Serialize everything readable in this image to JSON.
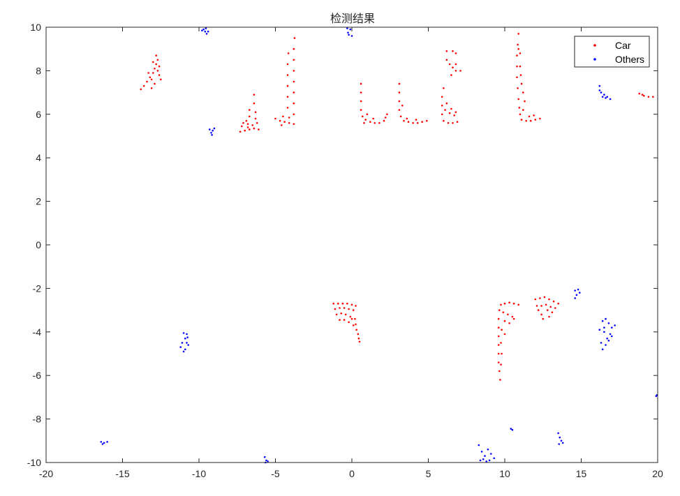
{
  "chart_data": {
    "type": "scatter",
    "title": "检测结果",
    "xlabel": "",
    "ylabel": "",
    "xlim": [
      -20,
      20
    ],
    "ylim": [
      -10,
      10
    ],
    "xticks": [
      -20,
      -15,
      -10,
      -5,
      0,
      5,
      10,
      15,
      20
    ],
    "yticks": [
      -10,
      -8,
      -6,
      -4,
      -2,
      0,
      2,
      4,
      6,
      8,
      10
    ],
    "grid": false,
    "legend_position": "top-right",
    "series": [
      {
        "name": "Car",
        "color": "#ff0000",
        "points": [
          [
            -13.8,
            7.15
          ],
          [
            -13.6,
            7.3
          ],
          [
            -13.4,
            7.5
          ],
          [
            -13.2,
            7.7
          ],
          [
            -13.0,
            7.9
          ],
          [
            -12.9,
            8.1
          ],
          [
            -12.8,
            8.3
          ],
          [
            -12.7,
            8.5
          ],
          [
            -12.8,
            8.7
          ],
          [
            -13.1,
            7.6
          ],
          [
            -12.6,
            7.8
          ],
          [
            -12.9,
            7.4
          ],
          [
            -13.3,
            7.9
          ],
          [
            -12.7,
            8.0
          ],
          [
            -13.0,
            8.4
          ],
          [
            -12.6,
            8.2
          ],
          [
            -13.1,
            7.2
          ],
          [
            -12.5,
            7.6
          ],
          [
            -7.3,
            5.2
          ],
          [
            -7.0,
            5.25
          ],
          [
            -6.7,
            5.3
          ],
          [
            -6.4,
            5.35
          ],
          [
            -6.1,
            5.3
          ],
          [
            -7.2,
            5.45
          ],
          [
            -6.8,
            5.55
          ],
          [
            -6.5,
            5.5
          ],
          [
            -6.3,
            5.8
          ],
          [
            -6.3,
            6.1
          ],
          [
            -6.4,
            6.5
          ],
          [
            -6.4,
            6.9
          ],
          [
            -6.7,
            5.9
          ],
          [
            -6.7,
            6.2
          ],
          [
            -6.8,
            5.4
          ],
          [
            -7.1,
            5.6
          ],
          [
            -6.2,
            5.6
          ],
          [
            -6.9,
            5.7
          ],
          [
            -5.0,
            5.8
          ],
          [
            -4.7,
            5.7
          ],
          [
            -4.4,
            5.65
          ],
          [
            -4.1,
            5.6
          ],
          [
            -3.8,
            5.55
          ],
          [
            -3.8,
            6.0
          ],
          [
            -3.8,
            6.5
          ],
          [
            -3.8,
            7.0
          ],
          [
            -3.8,
            7.5
          ],
          [
            -3.8,
            8.0
          ],
          [
            -3.8,
            8.5
          ],
          [
            -3.8,
            9.0
          ],
          [
            -3.75,
            9.5
          ],
          [
            -4.1,
            5.85
          ],
          [
            -4.5,
            5.9
          ],
          [
            -4.2,
            6.3
          ],
          [
            -4.2,
            6.8
          ],
          [
            -4.2,
            7.3
          ],
          [
            -4.2,
            7.8
          ],
          [
            -4.2,
            8.3
          ],
          [
            -4.15,
            8.8
          ],
          [
            -4.6,
            5.5
          ],
          [
            0.6,
            7.4
          ],
          [
            0.6,
            7.0
          ],
          [
            0.6,
            6.6
          ],
          [
            0.6,
            6.2
          ],
          [
            0.7,
            5.9
          ],
          [
            0.9,
            5.75
          ],
          [
            1.2,
            5.65
          ],
          [
            1.5,
            5.6
          ],
          [
            1.8,
            5.6
          ],
          [
            2.1,
            5.7
          ],
          [
            2.3,
            6.0
          ],
          [
            2.2,
            5.85
          ],
          [
            1.4,
            5.8
          ],
          [
            1.0,
            6.0
          ],
          [
            0.8,
            5.6
          ],
          [
            3.1,
            7.4
          ],
          [
            3.1,
            7.0
          ],
          [
            3.1,
            6.6
          ],
          [
            3.1,
            6.2
          ],
          [
            3.2,
            5.9
          ],
          [
            3.4,
            5.7
          ],
          [
            3.7,
            5.65
          ],
          [
            4.0,
            5.6
          ],
          [
            4.3,
            5.6
          ],
          [
            4.6,
            5.65
          ],
          [
            4.9,
            5.7
          ],
          [
            3.3,
            6.4
          ],
          [
            3.6,
            5.8
          ],
          [
            4.2,
            5.75
          ],
          [
            5.9,
            6.8
          ],
          [
            5.9,
            6.4
          ],
          [
            5.9,
            6.0
          ],
          [
            6.0,
            5.7
          ],
          [
            6.3,
            5.6
          ],
          [
            6.6,
            5.6
          ],
          [
            6.9,
            5.65
          ],
          [
            6.1,
            6.2
          ],
          [
            6.4,
            6.05
          ],
          [
            6.7,
            5.95
          ],
          [
            6.2,
            6.5
          ],
          [
            6.5,
            6.25
          ],
          [
            6.8,
            6.1
          ],
          [
            6.0,
            7.2
          ],
          [
            6.2,
            8.9
          ],
          [
            6.2,
            8.5
          ],
          [
            6.4,
            8.3
          ],
          [
            6.8,
            8.3
          ],
          [
            6.8,
            8.8
          ],
          [
            6.6,
            8.9
          ],
          [
            6.5,
            7.8
          ],
          [
            6.8,
            8.0
          ],
          [
            7.1,
            8.0
          ],
          [
            6.6,
            8.15
          ],
          [
            10.9,
            9.7
          ],
          [
            10.85,
            9.2
          ],
          [
            10.8,
            8.7
          ],
          [
            10.8,
            8.2
          ],
          [
            10.8,
            7.7
          ],
          [
            10.85,
            7.2
          ],
          [
            10.9,
            6.7
          ],
          [
            10.95,
            6.3
          ],
          [
            11.0,
            6.0
          ],
          [
            11.1,
            5.75
          ],
          [
            11.4,
            5.7
          ],
          [
            11.7,
            5.7
          ],
          [
            12.0,
            5.75
          ],
          [
            12.3,
            5.8
          ],
          [
            11.2,
            6.2
          ],
          [
            11.3,
            6.6
          ],
          [
            11.2,
            7.0
          ],
          [
            11.1,
            7.4
          ],
          [
            11.05,
            7.8
          ],
          [
            11.0,
            8.2
          ],
          [
            11.6,
            5.9
          ],
          [
            11.9,
            5.95
          ],
          [
            10.9,
            9.0
          ],
          [
            11.0,
            8.8
          ],
          [
            18.8,
            6.95
          ],
          [
            19.1,
            6.85
          ],
          [
            19.4,
            6.8
          ],
          [
            19.7,
            6.8
          ],
          [
            19.0,
            6.9
          ],
          [
            -1.2,
            -2.7
          ],
          [
            -0.9,
            -2.7
          ],
          [
            -0.6,
            -2.7
          ],
          [
            -0.3,
            -2.7
          ],
          [
            0.0,
            -2.75
          ],
          [
            0.25,
            -2.8
          ],
          [
            -1.1,
            -2.95
          ],
          [
            -0.8,
            -2.9
          ],
          [
            -0.5,
            -2.9
          ],
          [
            -0.2,
            -2.95
          ],
          [
            0.1,
            -3.0
          ],
          [
            -1.0,
            -3.2
          ],
          [
            -0.7,
            -3.15
          ],
          [
            -0.4,
            -3.2
          ],
          [
            -0.1,
            -3.3
          ],
          [
            0.2,
            -3.4
          ],
          [
            -0.8,
            -3.45
          ],
          [
            -0.5,
            -3.45
          ],
          [
            -0.2,
            -3.55
          ],
          [
            0.1,
            -3.7
          ],
          [
            0.3,
            -3.9
          ],
          [
            0.4,
            -4.1
          ],
          [
            0.45,
            -4.3
          ],
          [
            0.5,
            -4.45
          ],
          [
            0.25,
            -3.65
          ],
          [
            0.0,
            -3.4
          ],
          [
            9.7,
            -6.2
          ],
          [
            9.65,
            -5.8
          ],
          [
            9.6,
            -5.4
          ],
          [
            9.6,
            -5.0
          ],
          [
            9.6,
            -4.6
          ],
          [
            9.6,
            -4.2
          ],
          [
            9.6,
            -3.8
          ],
          [
            9.6,
            -3.4
          ],
          [
            9.65,
            -3.0
          ],
          [
            9.75,
            -2.75
          ],
          [
            10.0,
            -2.7
          ],
          [
            10.3,
            -2.65
          ],
          [
            10.6,
            -2.7
          ],
          [
            10.9,
            -2.75
          ],
          [
            9.9,
            -3.1
          ],
          [
            10.2,
            -3.2
          ],
          [
            10.5,
            -3.3
          ],
          [
            10.0,
            -3.5
          ],
          [
            10.3,
            -3.6
          ],
          [
            10.6,
            -3.4
          ],
          [
            9.8,
            -3.9
          ],
          [
            10.0,
            -4.1
          ],
          [
            9.75,
            -4.5
          ],
          [
            9.8,
            -5.0
          ],
          [
            9.75,
            -5.5
          ],
          [
            12.0,
            -2.5
          ],
          [
            12.3,
            -2.45
          ],
          [
            12.6,
            -2.4
          ],
          [
            12.9,
            -2.5
          ],
          [
            13.2,
            -2.6
          ],
          [
            13.5,
            -2.7
          ],
          [
            12.1,
            -2.8
          ],
          [
            12.4,
            -2.8
          ],
          [
            12.7,
            -2.75
          ],
          [
            13.0,
            -2.85
          ],
          [
            13.3,
            -2.9
          ],
          [
            12.2,
            -3.0
          ],
          [
            12.4,
            -3.2
          ],
          [
            12.5,
            -3.4
          ],
          [
            12.8,
            -3.0
          ],
          [
            12.9,
            -3.3
          ],
          [
            13.1,
            -3.1
          ]
        ]
      },
      {
        "name": "Others",
        "color": "#0000ff",
        "points": [
          [
            -9.8,
            9.85
          ],
          [
            -9.6,
            9.8
          ],
          [
            -9.5,
            9.7
          ],
          [
            -9.7,
            9.9
          ],
          [
            -9.55,
            9.95
          ],
          [
            -9.4,
            9.8
          ],
          [
            -0.3,
            9.95
          ],
          [
            -0.1,
            9.9
          ],
          [
            -0.2,
            9.65
          ],
          [
            0.0,
            9.6
          ],
          [
            -0.25,
            9.75
          ],
          [
            -9.3,
            5.3
          ],
          [
            -9.1,
            5.25
          ],
          [
            -9.2,
            5.15
          ],
          [
            -9.0,
            5.35
          ],
          [
            -9.15,
            5.05
          ],
          [
            16.2,
            7.3
          ],
          [
            16.3,
            7.0
          ],
          [
            16.4,
            6.8
          ],
          [
            16.6,
            6.75
          ],
          [
            16.9,
            6.7
          ],
          [
            16.2,
            7.1
          ],
          [
            16.5,
            6.9
          ],
          [
            16.7,
            6.8
          ],
          [
            14.6,
            -2.1
          ],
          [
            14.8,
            -2.05
          ],
          [
            14.7,
            -2.3
          ],
          [
            14.9,
            -2.2
          ],
          [
            14.6,
            -2.45
          ],
          [
            16.2,
            -3.9
          ],
          [
            16.4,
            -3.5
          ],
          [
            16.6,
            -3.4
          ],
          [
            16.8,
            -3.6
          ],
          [
            16.5,
            -4.0
          ],
          [
            16.9,
            -4.1
          ],
          [
            16.3,
            -4.5
          ],
          [
            16.7,
            -4.3
          ],
          [
            17.0,
            -3.8
          ],
          [
            16.6,
            -4.6
          ],
          [
            16.4,
            -4.8
          ],
          [
            17.2,
            -3.7
          ],
          [
            16.8,
            -4.4
          ],
          [
            16.5,
            -3.8
          ],
          [
            17.0,
            -4.2
          ],
          [
            -11.0,
            -4.05
          ],
          [
            -10.8,
            -4.1
          ],
          [
            -10.9,
            -4.3
          ],
          [
            -11.1,
            -4.5
          ],
          [
            -10.7,
            -4.6
          ],
          [
            -11.2,
            -4.7
          ],
          [
            -10.9,
            -4.8
          ],
          [
            -10.8,
            -4.5
          ],
          [
            -11.0,
            -4.9
          ],
          [
            -10.75,
            -4.25
          ],
          [
            -16.4,
            -9.05
          ],
          [
            -16.2,
            -9.1
          ],
          [
            -16.0,
            -9.05
          ],
          [
            -16.3,
            -9.15
          ],
          [
            -5.7,
            -9.75
          ],
          [
            -5.6,
            -9.9
          ],
          [
            -5.5,
            -9.95
          ],
          [
            -5.65,
            -10.0
          ],
          [
            8.3,
            -9.2
          ],
          [
            8.5,
            -9.5
          ],
          [
            8.7,
            -9.7
          ],
          [
            8.9,
            -9.4
          ],
          [
            9.1,
            -9.6
          ],
          [
            8.4,
            -9.9
          ],
          [
            8.8,
            -9.95
          ],
          [
            9.3,
            -9.8
          ],
          [
            8.6,
            -9.85
          ],
          [
            9.0,
            -9.9
          ],
          [
            10.4,
            -8.45
          ],
          [
            10.5,
            -8.5
          ],
          [
            13.5,
            -8.65
          ],
          [
            13.6,
            -8.85
          ],
          [
            13.7,
            -9.0
          ],
          [
            13.55,
            -9.15
          ],
          [
            13.8,
            -9.1
          ],
          [
            19.9,
            -6.95
          ],
          [
            19.95,
            -6.9
          ]
        ]
      }
    ]
  }
}
